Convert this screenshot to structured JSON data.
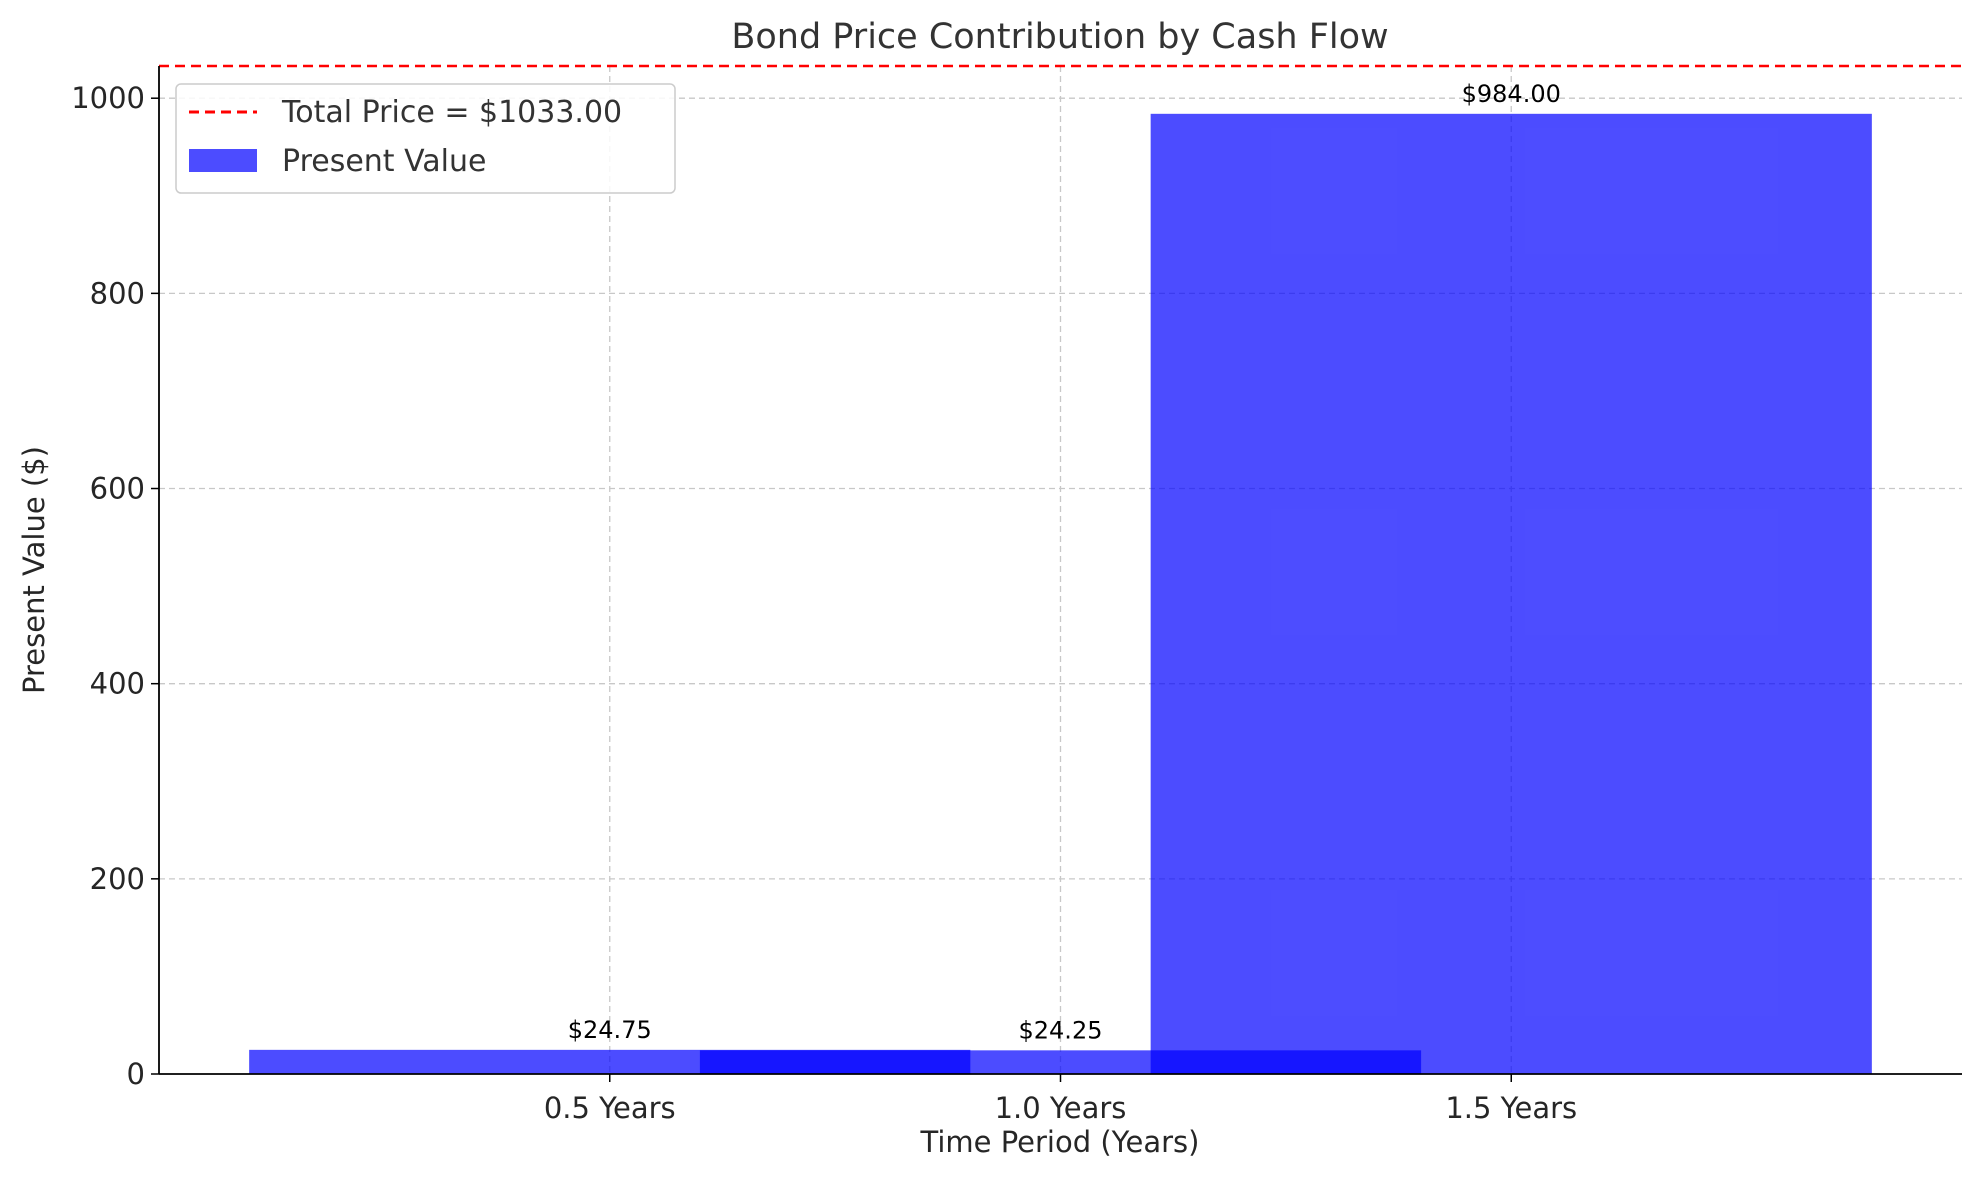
{
  "chart_data": {
    "type": "bar",
    "title": "Bond Price Contribution by Cash Flow",
    "xlabel": "Time Period (Years)",
    "ylabel": "Present Value ($)",
    "categories": [
      "0.5 Years",
      "1.0 Years",
      "1.5 Years"
    ],
    "x": [
      0.5,
      1.0,
      1.5
    ],
    "bar_width_years": 0.8,
    "series": [
      {
        "name": "Present Value",
        "values": [
          24.75,
          24.25,
          984.0
        ],
        "labels": [
          "$24.75",
          "$24.25",
          "$984.00"
        ],
        "color": "#0000ff",
        "alpha": 0.7
      }
    ],
    "reference_line": {
      "name": "Total Price = $1033.00",
      "value": 1033.0,
      "color": "#ff0000",
      "style": "dashed"
    },
    "xlim": [
      0.0,
      2.0
    ],
    "ylim": [
      0,
      1033
    ],
    "yticks": [
      0,
      200,
      400,
      600,
      800,
      1000
    ],
    "grid": true,
    "legend_position": "top-left"
  }
}
